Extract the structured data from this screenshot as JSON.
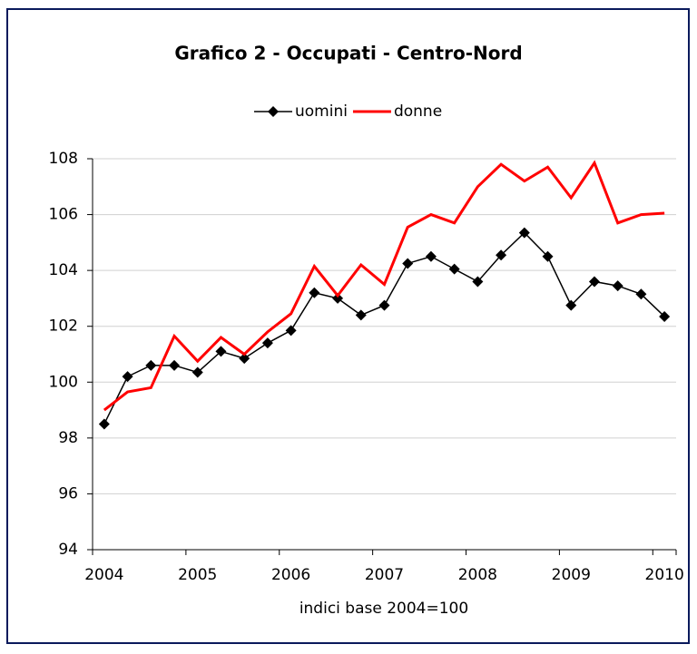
{
  "chart_data": {
    "type": "line",
    "title": "Grafico 2 - Occupati - Centro-Nord",
    "x_label": "indici base 2004=100",
    "categories": [
      "2004",
      null,
      null,
      null,
      "2005",
      null,
      null,
      null,
      "2006",
      null,
      null,
      null,
      "2007",
      null,
      null,
      null,
      "2008",
      null,
      null,
      null,
      "2009",
      null,
      null,
      null,
      "2010"
    ],
    "series": [
      {
        "name": "uomini",
        "color": "#000000",
        "marker": "diamond",
        "values": [
          98.5,
          100.2,
          100.6,
          100.6,
          100.35,
          101.1,
          100.85,
          101.4,
          101.85,
          103.2,
          103.0,
          102.4,
          102.75,
          104.25,
          104.5,
          104.05,
          103.6,
          104.55,
          105.35,
          104.5,
          102.75,
          103.6,
          103.45,
          103.15,
          102.35
        ]
      },
      {
        "name": "donne",
        "color": "#ff0000",
        "values": [
          99.0,
          99.65,
          99.8,
          101.65,
          100.75,
          101.6,
          101.0,
          101.8,
          102.45,
          104.15,
          103.1,
          104.2,
          103.5,
          105.55,
          106.0,
          105.7,
          107.0,
          107.8,
          107.2,
          107.7,
          106.6,
          107.85,
          105.7,
          106.0,
          106.05
        ]
      }
    ],
    "ylim": [
      94,
      108
    ],
    "yticks": [
      94,
      96,
      98,
      100,
      102,
      104,
      106,
      108
    ],
    "grid": true,
    "legend": "top"
  }
}
